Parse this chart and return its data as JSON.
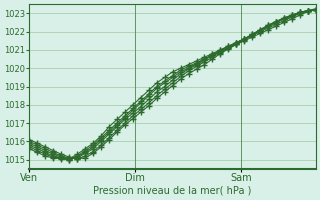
{
  "title": "",
  "xlabel": "Pression niveau de la mer( hPa )",
  "ylabel": "",
  "bg_color": "#d8f0e8",
  "line_color": "#2d6a2d",
  "grid_color": "#a0c8a0",
  "text_color": "#2d6a2d",
  "ylim": [
    1014.5,
    1023.5
  ],
  "yticks": [
    1015,
    1016,
    1017,
    1018,
    1019,
    1020,
    1021,
    1022,
    1023
  ],
  "xtick_labels": [
    "Ven",
    "Dim",
    "Sam"
  ],
  "xtick_pos": [
    0.0,
    0.37,
    0.74
  ],
  "n_points": 37,
  "lines": [
    [
      1015.6,
      1015.4,
      1015.2,
      1015.1,
      1015.05,
      1015.0,
      1015.2,
      1015.5,
      1015.8,
      1016.2,
      1016.6,
      1017.0,
      1017.4,
      1017.8,
      1018.2,
      1018.6,
      1019.0,
      1019.3,
      1019.6,
      1019.9,
      1020.1,
      1020.3,
      1020.5,
      1020.7,
      1020.9,
      1021.1,
      1021.3,
      1021.5,
      1021.7,
      1021.9,
      1022.1,
      1022.3,
      1022.5,
      1022.7,
      1022.9,
      1023.1,
      1023.2
    ],
    [
      1015.7,
      1015.5,
      1015.3,
      1015.15,
      1015.1,
      1015.05,
      1015.3,
      1015.6,
      1015.9,
      1016.3,
      1016.8,
      1017.2,
      1017.6,
      1018.0,
      1018.4,
      1018.8,
      1019.2,
      1019.5,
      1019.8,
      1020.0,
      1020.2,
      1020.4,
      1020.6,
      1020.8,
      1021.0,
      1021.2,
      1021.4,
      1021.6,
      1021.8,
      1022.0,
      1022.2,
      1022.4,
      1022.6,
      1022.8,
      1023.0,
      1023.15,
      1023.25
    ],
    [
      1015.8,
      1015.6,
      1015.4,
      1015.2,
      1015.1,
      1015.0,
      1015.15,
      1015.4,
      1015.7,
      1016.1,
      1016.5,
      1016.9,
      1017.3,
      1017.7,
      1018.1,
      1018.5,
      1018.9,
      1019.2,
      1019.5,
      1019.8,
      1020.0,
      1020.25,
      1020.5,
      1020.75,
      1021.0,
      1021.2,
      1021.4,
      1021.6,
      1021.8,
      1022.05,
      1022.3,
      1022.5,
      1022.7,
      1022.85,
      1023.0,
      1023.1,
      1023.2
    ],
    [
      1015.9,
      1015.7,
      1015.5,
      1015.3,
      1015.15,
      1015.05,
      1015.1,
      1015.35,
      1015.6,
      1016.0,
      1016.4,
      1016.8,
      1017.2,
      1017.55,
      1017.9,
      1018.3,
      1018.7,
      1019.0,
      1019.35,
      1019.7,
      1019.95,
      1020.2,
      1020.45,
      1020.7,
      1020.95,
      1021.15,
      1021.4,
      1021.6,
      1021.85,
      1022.1,
      1022.35,
      1022.55,
      1022.75,
      1022.9,
      1023.05,
      1023.15,
      1023.2
    ],
    [
      1016.0,
      1015.8,
      1015.6,
      1015.4,
      1015.2,
      1015.1,
      1015.05,
      1015.2,
      1015.45,
      1015.8,
      1016.2,
      1016.6,
      1017.0,
      1017.4,
      1017.75,
      1018.1,
      1018.5,
      1018.85,
      1019.2,
      1019.55,
      1019.85,
      1020.1,
      1020.35,
      1020.6,
      1020.85,
      1021.1,
      1021.35,
      1021.6,
      1021.85,
      1022.1,
      1022.35,
      1022.55,
      1022.75,
      1022.9,
      1023.05,
      1023.15,
      1023.2
    ],
    [
      1016.1,
      1015.9,
      1015.7,
      1015.5,
      1015.3,
      1015.15,
      1015.05,
      1015.1,
      1015.35,
      1015.7,
      1016.1,
      1016.5,
      1016.9,
      1017.25,
      1017.6,
      1017.95,
      1018.35,
      1018.7,
      1019.05,
      1019.4,
      1019.7,
      1019.95,
      1020.2,
      1020.5,
      1020.8,
      1021.05,
      1021.3,
      1021.55,
      1021.8,
      1022.05,
      1022.3,
      1022.5,
      1022.7,
      1022.9,
      1023.05,
      1023.15,
      1023.2
    ]
  ]
}
